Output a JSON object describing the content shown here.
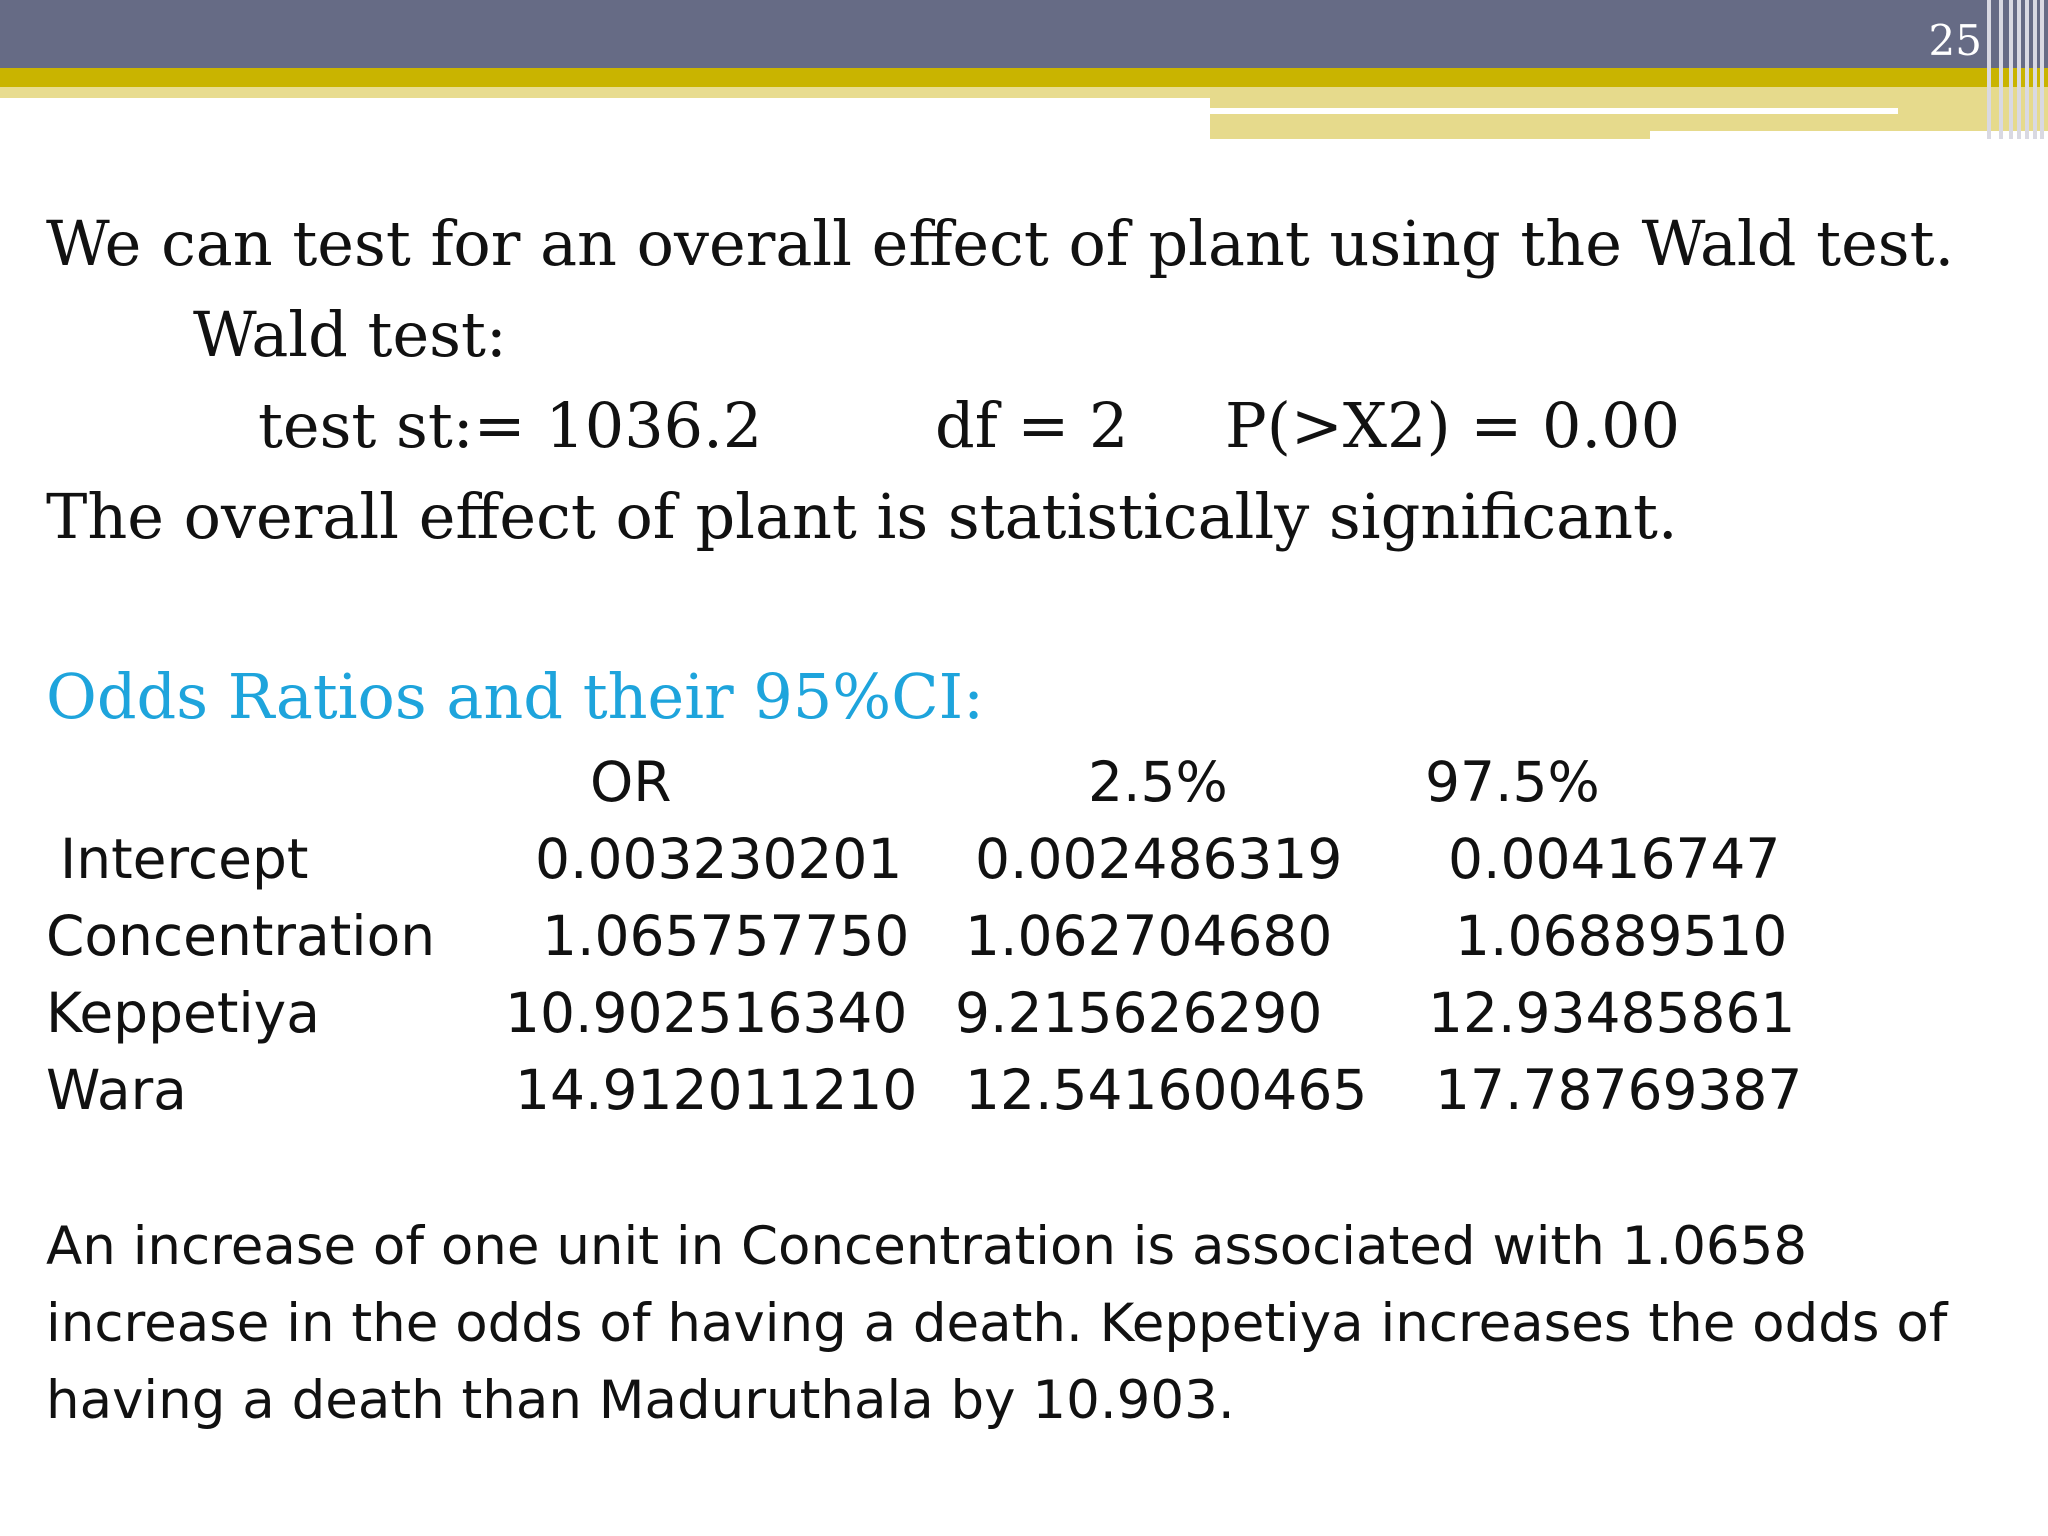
{
  "slide": {
    "page_number": "25"
  },
  "wald": {
    "intro": "We can test for an overall effect of plant using the Wald test.",
    "heading": "Wald test:",
    "stat_label": "test st:= 1036.2",
    "df_label": "df = 2",
    "p_label": "P(>X2) = 0.00",
    "conclusion": "The overall effect of plant is statistically significant."
  },
  "odds": {
    "heading": "Odds Ratios and their 95%CI:",
    "heading_color": "#1ea4dc",
    "columns": [
      "OR",
      "2.5%",
      "97.5%"
    ],
    "rows": [
      {
        "label": "Intercept",
        "or": "0.003230201",
        "lo": "0.002486319",
        "hi": "0.00416747"
      },
      {
        "label": "Concentration",
        "or": "1.065757750",
        "lo": "1.062704680",
        "hi": "1.06889510"
      },
      {
        "label": "Keppetiya",
        "or": "10.902516340",
        "lo": "9.215626290",
        "hi": "12.93485861"
      },
      {
        "label": "Wara",
        "or": "14.912011210",
        "lo": "12.541600465",
        "hi": "17.78769387"
      }
    ]
  },
  "interpretation": "An increase of one unit in Concentration is associated with 1.0658 increase in the odds of having a death. Keppetiya increases the odds of having a death than  Maduruthala by 10.903.",
  "colors": {
    "header_band": "#666b85",
    "gold_band": "#c9b400",
    "pale_band": "#e6da8c"
  }
}
